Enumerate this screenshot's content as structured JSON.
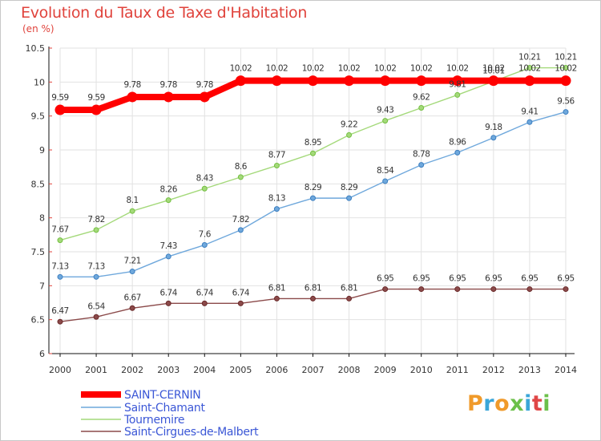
{
  "header": {
    "title": "Evolution du Taux de Taxe d'Habitation",
    "unit": "(en %)"
  },
  "brand": {
    "text": "Proxiti",
    "colors": [
      "#f09a2a",
      "#3aa6d8",
      "#f09a2a",
      "#6cc04a",
      "#3aa6d8",
      "#e04646",
      "#6cc04a"
    ]
  },
  "chart_data": {
    "type": "line",
    "title": "Evolution du Taux de Taxe d'Habitation",
    "ylabel": "(en %)",
    "xlabel": "",
    "x": [
      "2000",
      "2001",
      "2002",
      "2003",
      "2004",
      "2005",
      "2006",
      "2007",
      "2008",
      "2009",
      "2010",
      "2011",
      "2012",
      "2013",
      "2014"
    ],
    "ylim": [
      6,
      10.5
    ],
    "yticks": [
      "6",
      "6.5",
      "7",
      "7.5",
      "8",
      "8.5",
      "9",
      "9.5",
      "10",
      "10.5"
    ],
    "grid": true,
    "legend_position": "bottom-left",
    "series": [
      {
        "name": "SAINT-CERNIN",
        "color": "#ff0000",
        "values": [
          9.59,
          9.59,
          9.78,
          9.78,
          9.78,
          10.02,
          10.02,
          10.02,
          10.02,
          10.02,
          10.02,
          10.02,
          10.02,
          10.02,
          10.02
        ],
        "labels": [
          "9.59",
          "9.59",
          "9.78",
          "9.78",
          "9.78",
          "10.02",
          "10.02",
          "10.02",
          "10.02",
          "10.02",
          "10.02",
          "10.02",
          "10.02",
          "10.02",
          "10.02"
        ]
      },
      {
        "name": "Saint-Chamant",
        "color": "#6fa8dc",
        "marker": "#3d7fc0",
        "values": [
          7.13,
          7.13,
          7.21,
          7.43,
          7.6,
          7.82,
          8.13,
          8.29,
          8.29,
          8.54,
          8.78,
          8.96,
          9.18,
          9.41,
          9.56
        ],
        "labels": [
          "7.13",
          "7.13",
          "7.21",
          "7.43",
          "7.6",
          "7.82",
          "8.13",
          "8.29",
          "8.29",
          "8.54",
          "8.78",
          "8.96",
          "9.18",
          "9.41",
          "9.56"
        ]
      },
      {
        "name": "Tournemire",
        "color": "#a4d97a",
        "marker": "#74c042",
        "values": [
          7.67,
          7.82,
          8.1,
          8.26,
          8.43,
          8.6,
          8.77,
          8.95,
          9.22,
          9.43,
          9.62,
          9.81,
          10.01,
          10.21,
          10.21
        ],
        "labels": [
          "7.67",
          "7.82",
          "8.1",
          "8.26",
          "8.43",
          "8.6",
          "8.77",
          "8.95",
          "9.22",
          "9.43",
          "9.62",
          "9.81",
          "10.01",
          "10.21",
          "10.21"
        ]
      },
      {
        "name": "Saint-Cirgues-de-Malbert",
        "color": "#8b4a4a",
        "marker": "#6b2a2a",
        "values": [
          6.47,
          6.54,
          6.67,
          6.74,
          6.74,
          6.74,
          6.81,
          6.81,
          6.81,
          6.95,
          6.95,
          6.95,
          6.95,
          6.95,
          6.95
        ],
        "labels": [
          "6.47",
          "6.54",
          "6.67",
          "6.74",
          "6.74",
          "6.74",
          "6.81",
          "6.81",
          "6.81",
          "6.95",
          "6.95",
          "6.95",
          "6.95",
          "6.95",
          "6.95"
        ]
      }
    ]
  }
}
